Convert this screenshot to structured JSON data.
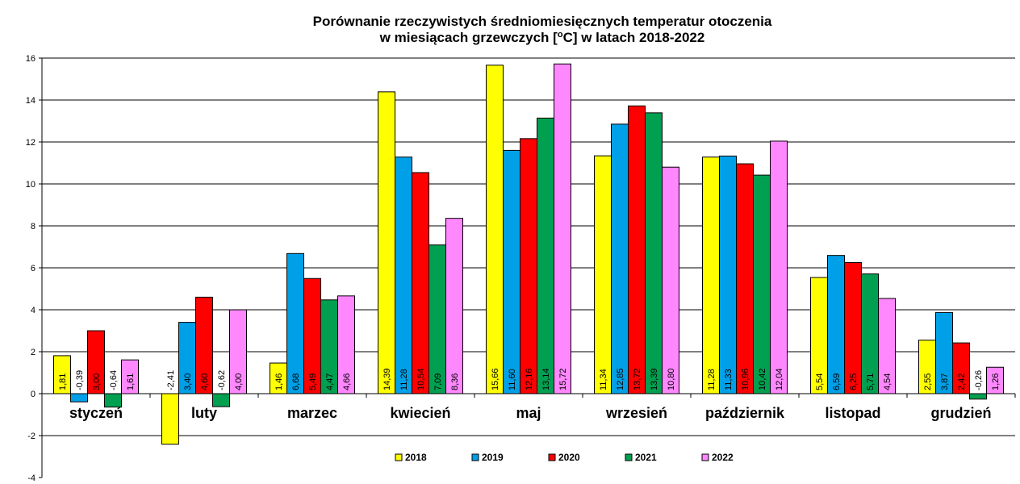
{
  "chart_data": {
    "type": "bar",
    "title_lines": [
      "Porównanie rzeczywistych średniomiesięcznych  temperatur otoczenia",
      "w miesiącach grzewczych  [",
      "o",
      "C]  w latach   2018-2022"
    ],
    "categories": [
      "styczeń",
      "luty",
      "marzec",
      "kwiecień",
      "maj",
      "wrzesień",
      "październik",
      "listopad",
      "grudzień"
    ],
    "series": [
      {
        "name": "2018",
        "color": "#ffff00",
        "values": [
          1.81,
          -2.41,
          1.46,
          14.39,
          15.66,
          11.34,
          11.28,
          5.54,
          2.55
        ],
        "labels": [
          "1,81",
          "-2,41",
          "1,46",
          "14,39",
          "15,66",
          "11,34",
          "11,28",
          "5,54",
          "2,55"
        ]
      },
      {
        "name": "2019",
        "color": "#00a0e8",
        "values": [
          -0.39,
          3.4,
          6.68,
          11.28,
          11.6,
          12.85,
          11.33,
          6.59,
          3.87
        ],
        "labels": [
          "-0,39",
          "3,40",
          "6,68",
          "11,28",
          "11,60",
          "12,85",
          "11,33",
          "6,59",
          "3,87"
        ]
      },
      {
        "name": "2020",
        "color": "#ff0000",
        "values": [
          3.0,
          4.6,
          5.49,
          10.54,
          12.16,
          13.72,
          10.96,
          6.25,
          2.42
        ],
        "labels": [
          "3,00",
          "4,60",
          "5,49",
          "10,54",
          "12,16",
          "13,72",
          "10,96",
          "6,25",
          "2,42"
        ]
      },
      {
        "name": "2021",
        "color": "#00a050",
        "values": [
          -0.64,
          -0.62,
          4.47,
          7.09,
          13.14,
          13.39,
          10.42,
          5.71,
          -0.26
        ],
        "labels": [
          "-0,64",
          "-0,62",
          "4,47",
          "7,09",
          "13,14",
          "13,39",
          "10,42",
          "5,71",
          "-0,26"
        ]
      },
      {
        "name": "2022",
        "color": "#ff88ff",
        "values": [
          1.61,
          4.0,
          4.66,
          8.36,
          15.72,
          10.8,
          12.04,
          4.54,
          1.26
        ],
        "labels": [
          "1,61",
          "4,00",
          "4,66",
          "8,36",
          "15,72",
          "10,80",
          "12,04",
          "4,54",
          "1,26"
        ]
      }
    ],
    "ylim": [
      -4,
      16
    ],
    "yticks": [
      "-4",
      "-2",
      "0",
      "2",
      "4",
      "6",
      "8",
      "10",
      "12",
      "14",
      "16"
    ],
    "grid": true,
    "legend": "bottom-inside"
  }
}
